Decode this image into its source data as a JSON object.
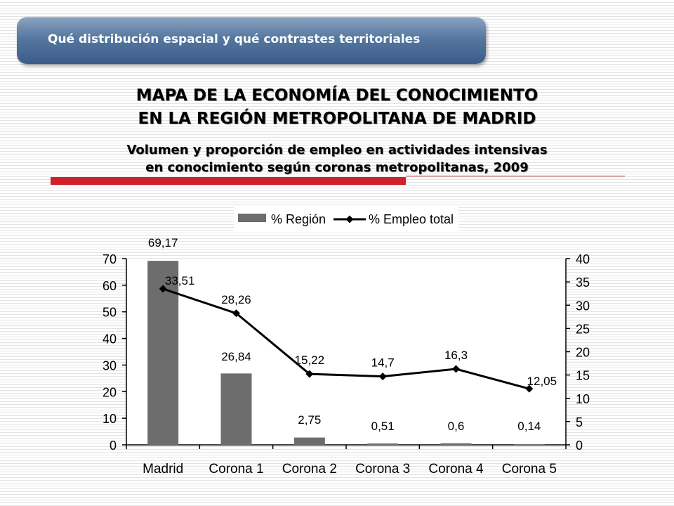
{
  "header": {
    "pill_text": "Qué distribución espacial y qué contrastes territoriales"
  },
  "title": {
    "line1": "MAPA DE LA ECONOMÍA DEL CONOCIMIENTO",
    "line2": "EN LA REGIÓN METROPOLITANA DE MADRID",
    "sub1": "Volumen y proporción de empleo en actividades intensivas",
    "sub2": "en conocimiento según coronas metropolitanas, 2009"
  },
  "colors": {
    "accent_red": "#d0202a",
    "bar": "#6d6d6d",
    "line": "#000000",
    "pill": "#56779f"
  },
  "chart_data": {
    "type": "bar",
    "categories": [
      "Madrid",
      "Corona 1",
      "Corona 2",
      "Corona 3",
      "Corona 4",
      "Corona 5"
    ],
    "series": [
      {
        "name": "% Región",
        "type": "bar",
        "axis": "left",
        "values": [
          69.17,
          26.84,
          2.75,
          0.51,
          0.6,
          0.14
        ],
        "labels": [
          "69,17",
          "26,84",
          "2,75",
          "0,51",
          "0,6",
          "0,14"
        ]
      },
      {
        "name": "% Empleo total",
        "type": "line",
        "axis": "right",
        "values": [
          33.51,
          28.26,
          15.22,
          14.7,
          16.3,
          12.05
        ],
        "labels": [
          "33,51",
          "28,26",
          "15,22",
          "14,7",
          "16,3",
          "12,05"
        ]
      }
    ],
    "y_left": {
      "min": 0,
      "max": 70,
      "step": 10,
      "ticks": [
        "0",
        "10",
        "20",
        "30",
        "40",
        "50",
        "60",
        "70"
      ]
    },
    "y_right": {
      "min": 0,
      "max": 40,
      "step": 5,
      "ticks": [
        "0",
        "5",
        "10",
        "15",
        "20",
        "25",
        "30",
        "35",
        "40"
      ]
    },
    "legend": {
      "position": "top",
      "entries": [
        "% Región",
        "% Empleo total"
      ]
    },
    "grid": false
  }
}
